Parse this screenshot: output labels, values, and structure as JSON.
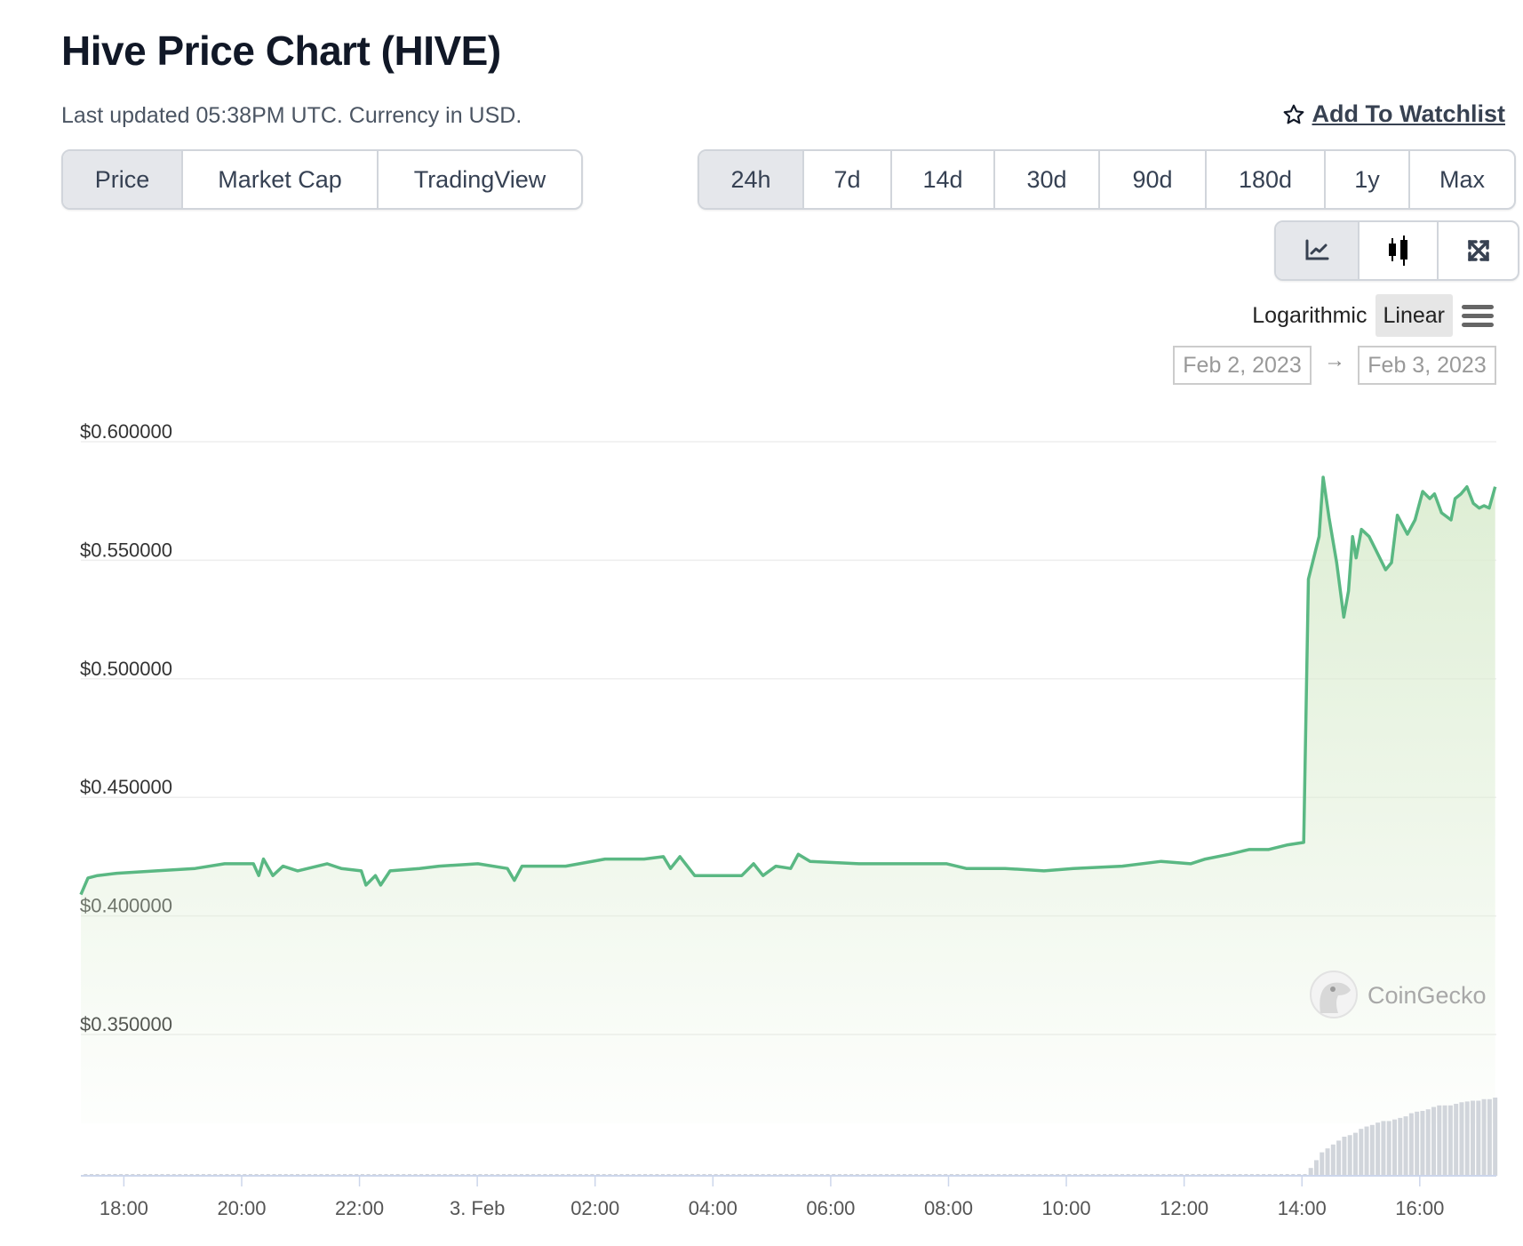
{
  "header": {
    "title": "Hive Price Chart (HIVE)",
    "subtitle": "Last updated 05:38PM UTC. Currency in USD.",
    "watchlist_label": "Add To Watchlist",
    "watchlist_icon": "star-icon"
  },
  "view_tabs": [
    {
      "label": "Price",
      "active": true
    },
    {
      "label": "Market Cap",
      "active": false
    },
    {
      "label": "TradingView",
      "active": false
    }
  ],
  "range_tabs": [
    {
      "label": "24h",
      "active": true
    },
    {
      "label": "7d",
      "active": false
    },
    {
      "label": "14d",
      "active": false
    },
    {
      "label": "30d",
      "active": false
    },
    {
      "label": "90d",
      "active": false
    },
    {
      "label": "180d",
      "active": false
    },
    {
      "label": "1y",
      "active": false
    },
    {
      "label": "Max",
      "active": false
    }
  ],
  "chart_type_buttons": [
    {
      "icon": "line-chart-icon",
      "active": true
    },
    {
      "icon": "candlestick-icon",
      "active": false
    },
    {
      "icon": "expand-icon",
      "active": false
    }
  ],
  "scale": {
    "options": [
      "Logarithmic",
      "Linear"
    ],
    "active": "Linear",
    "menu_icon": "hamburger-menu-icon"
  },
  "date_range": {
    "from": "Feb 2, 2023",
    "arrow": "→",
    "to": "Feb 3, 2023"
  },
  "watermark": "CoinGecko",
  "colors": {
    "line": "#5ab883",
    "fill": "#dcedd2",
    "volume": "#d1d5db",
    "grid": "#eeeeee",
    "axis": "#ccd6eb"
  },
  "chart_data": {
    "type": "area",
    "title": "Hive Price Chart (HIVE)",
    "xlabel": "",
    "ylabel": "",
    "x_unit": "hours since Feb 2 18:00 UTC",
    "xlim": [
      -0.73,
      23.3
    ],
    "ylim": [
      0.35,
      0.6
    ],
    "grid": true,
    "y_ticks": [
      {
        "value": 0.6,
        "label": "$0.600000"
      },
      {
        "value": 0.55,
        "label": "$0.550000"
      },
      {
        "value": 0.5,
        "label": "$0.500000"
      },
      {
        "value": 0.45,
        "label": "$0.450000"
      },
      {
        "value": 0.4,
        "label": "$0.400000"
      },
      {
        "value": 0.35,
        "label": "$0.350000"
      }
    ],
    "x_ticks": [
      {
        "value": 0,
        "label": "18:00"
      },
      {
        "value": 2,
        "label": "20:00"
      },
      {
        "value": 4,
        "label": "22:00"
      },
      {
        "value": 6,
        "label": "3. Feb"
      },
      {
        "value": 8,
        "label": "02:00"
      },
      {
        "value": 10,
        "label": "04:00"
      },
      {
        "value": 12,
        "label": "06:00"
      },
      {
        "value": 14,
        "label": "08:00"
      },
      {
        "value": 16,
        "label": "10:00"
      },
      {
        "value": 18,
        "label": "12:00"
      },
      {
        "value": 20,
        "label": "14:00"
      },
      {
        "value": 22,
        "label": "16:00"
      }
    ],
    "series": [
      {
        "name": "Price",
        "points": [
          [
            -0.73,
            0.409
          ],
          [
            -0.61,
            0.416
          ],
          [
            -0.45,
            0.417
          ],
          [
            -0.12,
            0.418
          ],
          [
            0.55,
            0.419
          ],
          [
            1.21,
            0.42
          ],
          [
            1.71,
            0.422
          ],
          [
            2.2,
            0.422
          ],
          [
            2.29,
            0.417
          ],
          [
            2.37,
            0.424
          ],
          [
            2.53,
            0.417
          ],
          [
            2.7,
            0.421
          ],
          [
            2.95,
            0.419
          ],
          [
            3.45,
            0.422
          ],
          [
            3.69,
            0.42
          ],
          [
            4.03,
            0.419
          ],
          [
            4.11,
            0.413
          ],
          [
            4.27,
            0.417
          ],
          [
            4.36,
            0.413
          ],
          [
            4.52,
            0.419
          ],
          [
            5.02,
            0.42
          ],
          [
            5.35,
            0.421
          ],
          [
            6.01,
            0.422
          ],
          [
            6.51,
            0.42
          ],
          [
            6.63,
            0.415
          ],
          [
            6.76,
            0.421
          ],
          [
            7.5,
            0.421
          ],
          [
            8.17,
            0.424
          ],
          [
            8.83,
            0.424
          ],
          [
            9.16,
            0.425
          ],
          [
            9.28,
            0.42
          ],
          [
            9.44,
            0.425
          ],
          [
            9.69,
            0.417
          ],
          [
            10.07,
            0.417
          ],
          [
            10.49,
            0.417
          ],
          [
            10.69,
            0.422
          ],
          [
            10.85,
            0.417
          ],
          [
            11.07,
            0.421
          ],
          [
            11.32,
            0.42
          ],
          [
            11.45,
            0.426
          ],
          [
            11.65,
            0.423
          ],
          [
            12.48,
            0.422
          ],
          [
            13.3,
            0.422
          ],
          [
            13.97,
            0.422
          ],
          [
            14.3,
            0.42
          ],
          [
            14.96,
            0.42
          ],
          [
            15.62,
            0.419
          ],
          [
            16.12,
            0.42
          ],
          [
            16.95,
            0.421
          ],
          [
            17.61,
            0.423
          ],
          [
            18.11,
            0.422
          ],
          [
            18.36,
            0.424
          ],
          [
            18.77,
            0.426
          ],
          [
            19.1,
            0.428
          ],
          [
            19.43,
            0.428
          ],
          [
            19.76,
            0.43
          ],
          [
            20.03,
            0.431
          ],
          [
            20.11,
            0.542
          ],
          [
            20.23,
            0.554
          ],
          [
            20.29,
            0.56
          ],
          [
            20.36,
            0.585
          ],
          [
            20.46,
            0.568
          ],
          [
            20.59,
            0.549
          ],
          [
            20.71,
            0.526
          ],
          [
            20.79,
            0.537
          ],
          [
            20.86,
            0.56
          ],
          [
            20.92,
            0.551
          ],
          [
            21.01,
            0.563
          ],
          [
            21.14,
            0.56
          ],
          [
            21.26,
            0.554
          ],
          [
            21.42,
            0.546
          ],
          [
            21.52,
            0.549
          ],
          [
            21.62,
            0.569
          ],
          [
            21.79,
            0.561
          ],
          [
            21.92,
            0.567
          ],
          [
            22.05,
            0.579
          ],
          [
            22.17,
            0.576
          ],
          [
            22.25,
            0.578
          ],
          [
            22.37,
            0.57
          ],
          [
            22.53,
            0.567
          ],
          [
            22.6,
            0.576
          ],
          [
            22.7,
            0.578
          ],
          [
            22.8,
            0.581
          ],
          [
            22.91,
            0.574
          ],
          [
            23.01,
            0.572
          ],
          [
            23.09,
            0.573
          ],
          [
            23.18,
            0.572
          ],
          [
            23.28,
            0.581
          ]
        ]
      }
    ],
    "volume": {
      "unit": "relative to max",
      "baseline_before": 20.1,
      "baseline_value": 0.02,
      "start": 20.15,
      "end": 23.28,
      "values": [
        0.1,
        0.2,
        0.3,
        0.35,
        0.4,
        0.45,
        0.5,
        0.52,
        0.55,
        0.6,
        0.63,
        0.65,
        0.68,
        0.7,
        0.7,
        0.72,
        0.74,
        0.76,
        0.8,
        0.82,
        0.83,
        0.85,
        0.88,
        0.9,
        0.9,
        0.9,
        0.92,
        0.94,
        0.95,
        0.96,
        0.96,
        0.98,
        0.98,
        1.0
      ]
    }
  }
}
